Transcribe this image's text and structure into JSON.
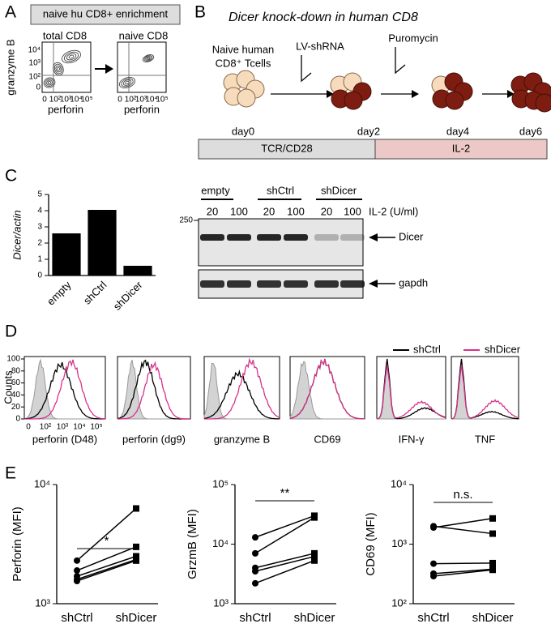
{
  "panel_labels": [
    "A",
    "B",
    "C",
    "D",
    "E"
  ],
  "panel_a": {
    "header": "naive hu CD8+ enrichment",
    "plot_titles": [
      "total CD8",
      "naive CD8"
    ],
    "y_label": "granzyme B",
    "x_label": "perforin",
    "yticks": [
      "10⁴",
      "10³",
      "10²",
      "0"
    ],
    "xticks": [
      "0",
      "10²",
      "10³",
      "10⁴",
      "10⁵"
    ]
  },
  "panel_b": {
    "title": "Dicer knock-down in human CD8",
    "cells_label": [
      "Naive human",
      "CD8⁺ Tcells"
    ],
    "steps": [
      "LV-shRNA",
      "Puromycin"
    ],
    "days": [
      "day0",
      "day2",
      "day4",
      "day6"
    ],
    "phases": [
      "TCR/CD28",
      "IL-2"
    ]
  },
  "panel_c_blot": {
    "groups": [
      "empty",
      "shCtrl",
      "shDicer"
    ],
    "doses": [
      20,
      100,
      20,
      100,
      20,
      100
    ],
    "dose_label": "IL-2 (U/ml)",
    "marker": 250,
    "bands": [
      "Dicer",
      "gapdh"
    ]
  },
  "panel_d": {
    "legend": [
      {
        "name": "shCtrl",
        "color": "#000000"
      },
      {
        "name": "shDicer",
        "color": "#d6338a"
      }
    ],
    "y_label": "Counts",
    "yticks": [
      0,
      20,
      40,
      60,
      80,
      100
    ],
    "xticks": [
      "0",
      "10²",
      "10³",
      "10⁴",
      "10⁵"
    ],
    "plots": [
      "perforin (D48)",
      "perforin (dg9)",
      "granzyme B",
      "CD69",
      "IFN-γ",
      "TNF"
    ]
  },
  "chart_data": [
    {
      "type": "bar",
      "y_label": "Dicer/actin",
      "categories": [
        "empty",
        "shCtrl",
        "shDicer"
      ],
      "values": [
        2.6,
        4.05,
        0.6
      ],
      "color": "#000000",
      "ylim": [
        0,
        5
      ],
      "yticks": [
        0,
        1,
        2,
        3,
        4,
        5
      ]
    },
    {
      "type": "line",
      "y_label": "Perforin (MFI)",
      "categories": [
        "shCtrl",
        "shDicer"
      ],
      "log_y": true,
      "annotation": "*",
      "color": "#000000",
      "series": [
        {
          "values": [
            2300,
            6300
          ]
        },
        {
          "values": [
            1900,
            3000
          ]
        },
        {
          "values": [
            1700,
            2500
          ]
        },
        {
          "values": [
            1600,
            2350
          ]
        },
        {
          "values": [
            1550,
            2300
          ]
        }
      ],
      "ylim": [
        1000,
        10000
      ],
      "yticks": [
        {
          "value": 1000,
          "label": "10³"
        },
        {
          "value": 10000,
          "label": "10⁴"
        }
      ]
    },
    {
      "type": "line",
      "y_label": "GrzmB (MFI)",
      "categories": [
        "shCtrl",
        "shDicer"
      ],
      "log_y": true,
      "annotation": "**",
      "color": "#000000",
      "series": [
        {
          "values": [
            13000,
            30000
          ]
        },
        {
          "values": [
            7000,
            28000
          ]
        },
        {
          "values": [
            4000,
            7000
          ]
        },
        {
          "values": [
            3500,
            6200
          ]
        },
        {
          "values": [
            2200,
            5300
          ]
        }
      ],
      "ylim": [
        1000,
        100000
      ],
      "yticks": [
        {
          "value": 1000,
          "label": "10³"
        },
        {
          "value": 10000,
          "label": "10⁴"
        },
        {
          "value": 100000,
          "label": "10⁵"
        }
      ]
    },
    {
      "type": "line",
      "y_label": "CD69 (MFI)",
      "categories": [
        "shCtrl",
        "shDicer"
      ],
      "log_y": true,
      "annotation": "n.s.",
      "color": "#000000",
      "series": [
        {
          "values": [
            2000,
            1500
          ]
        },
        {
          "values": [
            1900,
            2700
          ]
        },
        {
          "values": [
            470,
            480
          ]
        },
        {
          "values": [
            320,
            380
          ]
        },
        {
          "values": [
            290,
            370
          ]
        }
      ],
      "ylim": [
        100,
        10000
      ],
      "yticks": [
        {
          "value": 100,
          "label": "10²"
        },
        {
          "value": 1000,
          "label": "10³"
        },
        {
          "value": 10000,
          "label": "10⁴"
        }
      ]
    }
  ]
}
